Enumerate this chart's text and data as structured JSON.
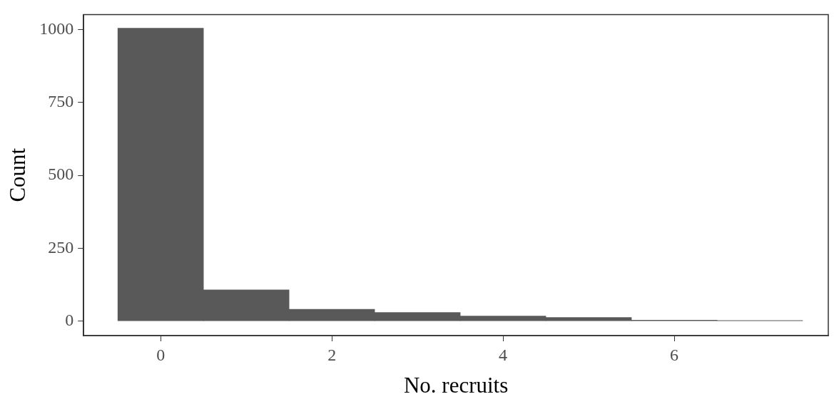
{
  "chart_data": {
    "type": "histogram",
    "xlabel": "No. recruits",
    "ylabel": "Count",
    "bins": [
      -0.5,
      0.5,
      1.5,
      2.5,
      3.5,
      4.5,
      5.5,
      6.5,
      7.5
    ],
    "values": [
      1005,
      107,
      40,
      29,
      17,
      12,
      3,
      2
    ],
    "color": "#595959",
    "xlim": [
      -0.9,
      7.8
    ],
    "xticks": [
      0,
      2,
      4,
      6
    ],
    "ylim": [
      -50,
      1052
    ],
    "yticks": [
      0,
      250,
      500,
      750,
      1000
    ],
    "grid": false
  }
}
